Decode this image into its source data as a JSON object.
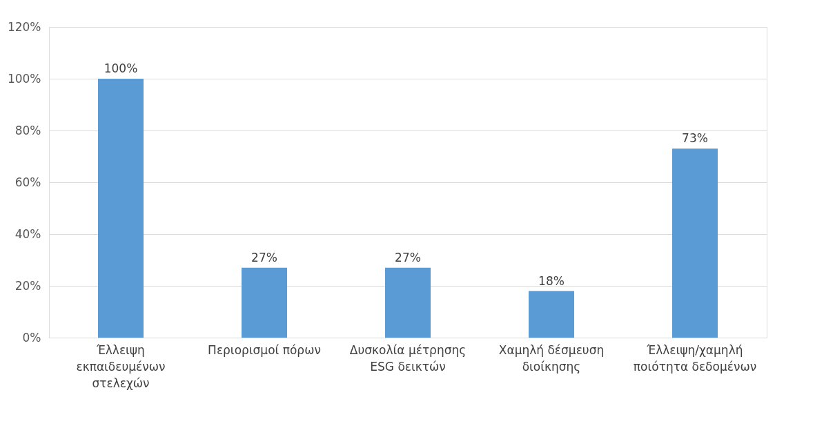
{
  "chart_data": {
    "type": "bar",
    "categories": [
      "Έλλειψη εκπαιδευμένων στελεχών",
      "Περιορισμοί πόρων",
      "Δυσκολία μέτρησης ESG δεικτών",
      "Χαμηλή δέσμευση διοίκησης",
      "Έλλειψη/χαμηλή ποιότητα δεδομένων"
    ],
    "values": [
      100,
      27,
      27,
      18,
      73
    ],
    "value_labels": [
      "100%",
      "27%",
      "27%",
      "18%",
      "73%"
    ],
    "color": "#5b9bd5",
    "ylim": [
      0,
      120
    ],
    "yticks": [
      {
        "value": 0,
        "label": "0%"
      },
      {
        "value": 20,
        "label": "20%"
      },
      {
        "value": 40,
        "label": "40%"
      },
      {
        "value": 60,
        "label": "60%"
      },
      {
        "value": 80,
        "label": "80%"
      },
      {
        "value": 100,
        "label": "100%"
      },
      {
        "value": 120,
        "label": "120%"
      }
    ],
    "grid": "y"
  }
}
